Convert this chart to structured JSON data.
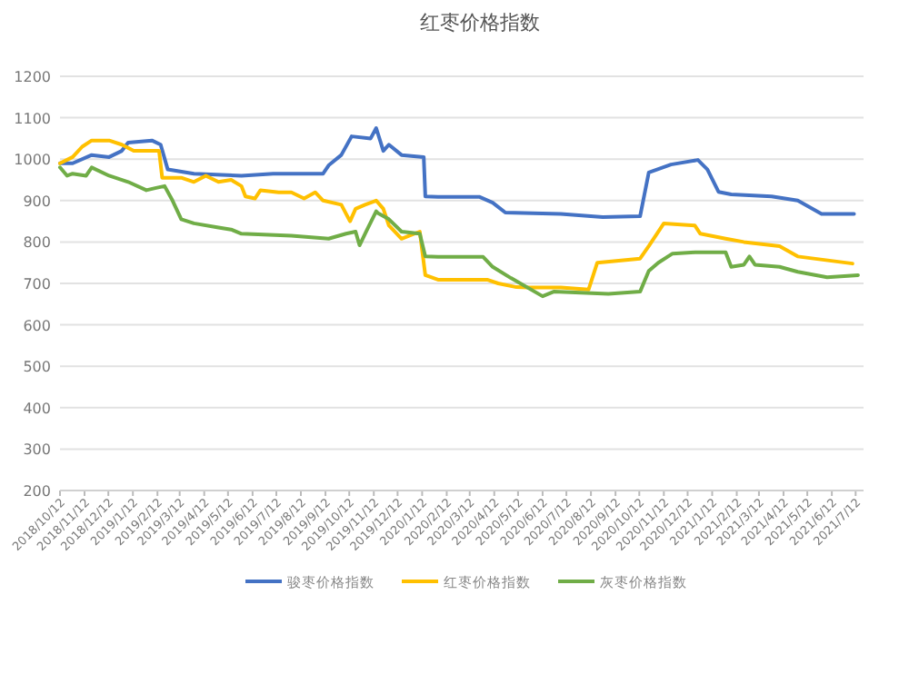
{
  "chart_data": {
    "type": "line",
    "title": "红枣价格指数",
    "xlim": [
      "2018-10-12",
      "2021-07-22"
    ],
    "ylim": [
      200,
      1200
    ],
    "yticks": [
      200,
      300,
      400,
      500,
      600,
      700,
      800,
      900,
      1000,
      1100,
      1200
    ],
    "xticks": [
      {
        "value": "2018-10-12",
        "label": "2018/10/12"
      },
      {
        "value": "2018-11-12",
        "label": "2018/11/12"
      },
      {
        "value": "2018-12-12",
        "label": "2018/12/12"
      },
      {
        "value": "2019-01-12",
        "label": "2019/1/12"
      },
      {
        "value": "2019-02-12",
        "label": "2019/2/12"
      },
      {
        "value": "2019-03-12",
        "label": "2019/3/12"
      },
      {
        "value": "2019-04-12",
        "label": "2019/4/12"
      },
      {
        "value": "2019-05-12",
        "label": "2019/5/12"
      },
      {
        "value": "2019-06-12",
        "label": "2019/6/12"
      },
      {
        "value": "2019-07-12",
        "label": "2019/7/12"
      },
      {
        "value": "2019-08-12",
        "label": "2019/8/12"
      },
      {
        "value": "2019-09-12",
        "label": "2019/9/12"
      },
      {
        "value": "2019-10-12",
        "label": "2019/10/12"
      },
      {
        "value": "2019-11-12",
        "label": "2019/11/12"
      },
      {
        "value": "2019-12-12",
        "label": "2019/12/12"
      },
      {
        "value": "2020-01-12",
        "label": "2020/1/12"
      },
      {
        "value": "2020-02-12",
        "label": "2020/2/12"
      },
      {
        "value": "2020-03-12",
        "label": "2020/3/12"
      },
      {
        "value": "2020-04-12",
        "label": "2020/4/12"
      },
      {
        "value": "2020-05-12",
        "label": "2020/5/12"
      },
      {
        "value": "2020-06-12",
        "label": "2020/6/12"
      },
      {
        "value": "2020-07-12",
        "label": "2020/7/12"
      },
      {
        "value": "2020-08-12",
        "label": "2020/8/12"
      },
      {
        "value": "2020-09-12",
        "label": "2020/9/12"
      },
      {
        "value": "2020-10-12",
        "label": "2020/10/12"
      },
      {
        "value": "2020-11-12",
        "label": "2020/11/12"
      },
      {
        "value": "2020-12-12",
        "label": "2020/12/12"
      },
      {
        "value": "2021-01-12",
        "label": "2021/1/12"
      },
      {
        "value": "2021-02-12",
        "label": "2021/2/12"
      },
      {
        "value": "2021-03-12",
        "label": "2021/3/12"
      },
      {
        "value": "2021-04-12",
        "label": "2021/4/12"
      },
      {
        "value": "2021-05-12",
        "label": "2021/5/12"
      },
      {
        "value": "2021-06-12",
        "label": "2021/6/12"
      },
      {
        "value": "2021-07-12",
        "label": "2021/7/12"
      }
    ],
    "grid": "y",
    "legend": "bottom",
    "marker": "none",
    "line_style": "solid",
    "series": [
      {
        "name": "骏枣价格指数",
        "color": "#4472c4",
        "x": [
          "2018-10-12",
          "2018-10-28",
          "2018-11-21",
          "2018-12-13",
          "2018-12-29",
          "2019-01-06",
          "2019-02-05",
          "2019-02-16",
          "2019-02-25",
          "2019-03-30",
          "2019-05-29",
          "2019-07-08",
          "2019-09-09",
          "2019-09-16",
          "2019-10-02",
          "2019-10-15",
          "2019-11-08",
          "2019-11-15",
          "2019-11-24",
          "2019-12-01",
          "2019-12-17",
          "2020-01-14",
          "2020-01-16",
          "2020-02-01",
          "2020-03-24",
          "2020-04-10",
          "2020-04-26",
          "2020-07-05",
          "2020-08-27",
          "2020-10-13",
          "2020-10-24",
          "2020-11-21",
          "2020-12-25",
          "2021-01-06",
          "2021-01-20",
          "2021-02-05",
          "2021-03-28",
          "2021-04-30",
          "2021-05-30",
          "2021-07-10"
        ],
        "values": [
          990,
          990,
          1010,
          1005,
          1020,
          1040,
          1045,
          1035,
          975,
          965,
          960,
          965,
          965,
          985,
          1010,
          1055,
          1050,
          1075,
          1020,
          1035,
          1010,
          1005,
          910,
          909,
          909,
          895,
          871,
          868,
          860,
          862,
          968,
          987,
          998,
          975,
          921,
          915,
          910,
          900,
          868,
          868
        ]
      },
      {
        "name": "红枣价格指数",
        "color": "#ffc000",
        "x": [
          "2018-10-12",
          "2018-10-28",
          "2018-11-09",
          "2018-11-21",
          "2018-12-13",
          "2018-12-29",
          "2019-01-13",
          "2019-02-14",
          "2019-02-18",
          "2019-03-14",
          "2019-03-30",
          "2019-04-14",
          "2019-04-30",
          "2019-05-16",
          "2019-05-29",
          "2019-06-03",
          "2019-06-15",
          "2019-06-22",
          "2019-07-15",
          "2019-07-31",
          "2019-08-16",
          "2019-08-30",
          "2019-09-09",
          "2019-10-02",
          "2019-10-13",
          "2019-10-20",
          "2019-11-01",
          "2019-11-15",
          "2019-11-24",
          "2019-12-01",
          "2019-12-17",
          "2020-01-09",
          "2020-01-16",
          "2020-02-01",
          "2020-04-03",
          "2020-04-17",
          "2020-05-10",
          "2020-05-26",
          "2020-07-05",
          "2020-08-09",
          "2020-08-20",
          "2020-10-13",
          "2020-10-24",
          "2020-11-12",
          "2020-12-21",
          "2020-12-28",
          "2021-01-29",
          "2021-02-21",
          "2021-04-07",
          "2021-04-30",
          "2021-07-08"
        ],
        "values": [
          990,
          1005,
          1030,
          1045,
          1045,
          1035,
          1020,
          1020,
          955,
          955,
          945,
          960,
          945,
          950,
          935,
          910,
          905,
          925,
          920,
          920,
          905,
          920,
          900,
          890,
          850,
          880,
          890,
          900,
          880,
          840,
          808,
          825,
          720,
          709,
          709,
          700,
          691,
          690,
          690,
          685,
          750,
          760,
          790,
          845,
          840,
          820,
          808,
          800,
          790,
          765,
          748
        ]
      },
      {
        "name": "灰枣价格指数",
        "color": "#70ad47",
        "x": [
          "2018-10-12",
          "2018-10-21",
          "2018-10-28",
          "2018-11-14",
          "2018-11-21",
          "2018-12-13",
          "2019-01-06",
          "2019-01-29",
          "2019-02-09",
          "2019-02-21",
          "2019-03-03",
          "2019-03-14",
          "2019-03-30",
          "2019-04-30",
          "2019-05-16",
          "2019-05-29",
          "2019-07-31",
          "2019-09-16",
          "2019-10-08",
          "2019-10-20",
          "2019-10-25",
          "2019-11-01",
          "2019-11-15",
          "2019-11-17",
          "2019-12-01",
          "2019-12-17",
          "2020-01-09",
          "2020-01-16",
          "2020-02-01",
          "2020-03-29",
          "2020-04-10",
          "2020-05-03",
          "2020-06-12",
          "2020-06-26",
          "2020-09-03",
          "2020-10-13",
          "2020-10-24",
          "2020-11-05",
          "2020-11-23",
          "2020-12-21",
          "2021-01-29",
          "2021-02-05",
          "2021-02-21",
          "2021-02-28",
          "2021-03-07",
          "2021-04-07",
          "2021-04-30",
          "2021-06-06",
          "2021-07-15"
        ],
        "values": [
          980,
          960,
          965,
          960,
          980,
          960,
          945,
          925,
          930,
          935,
          900,
          855,
          845,
          835,
          830,
          820,
          815,
          808,
          820,
          825,
          792,
          820,
          874,
          870,
          855,
          825,
          820,
          765,
          764,
          764,
          740,
          713,
          669,
          680,
          675,
          680,
          730,
          750,
          772,
          775,
          775,
          740,
          745,
          765,
          745,
          740,
          728,
          715,
          720
        ]
      }
    ]
  }
}
